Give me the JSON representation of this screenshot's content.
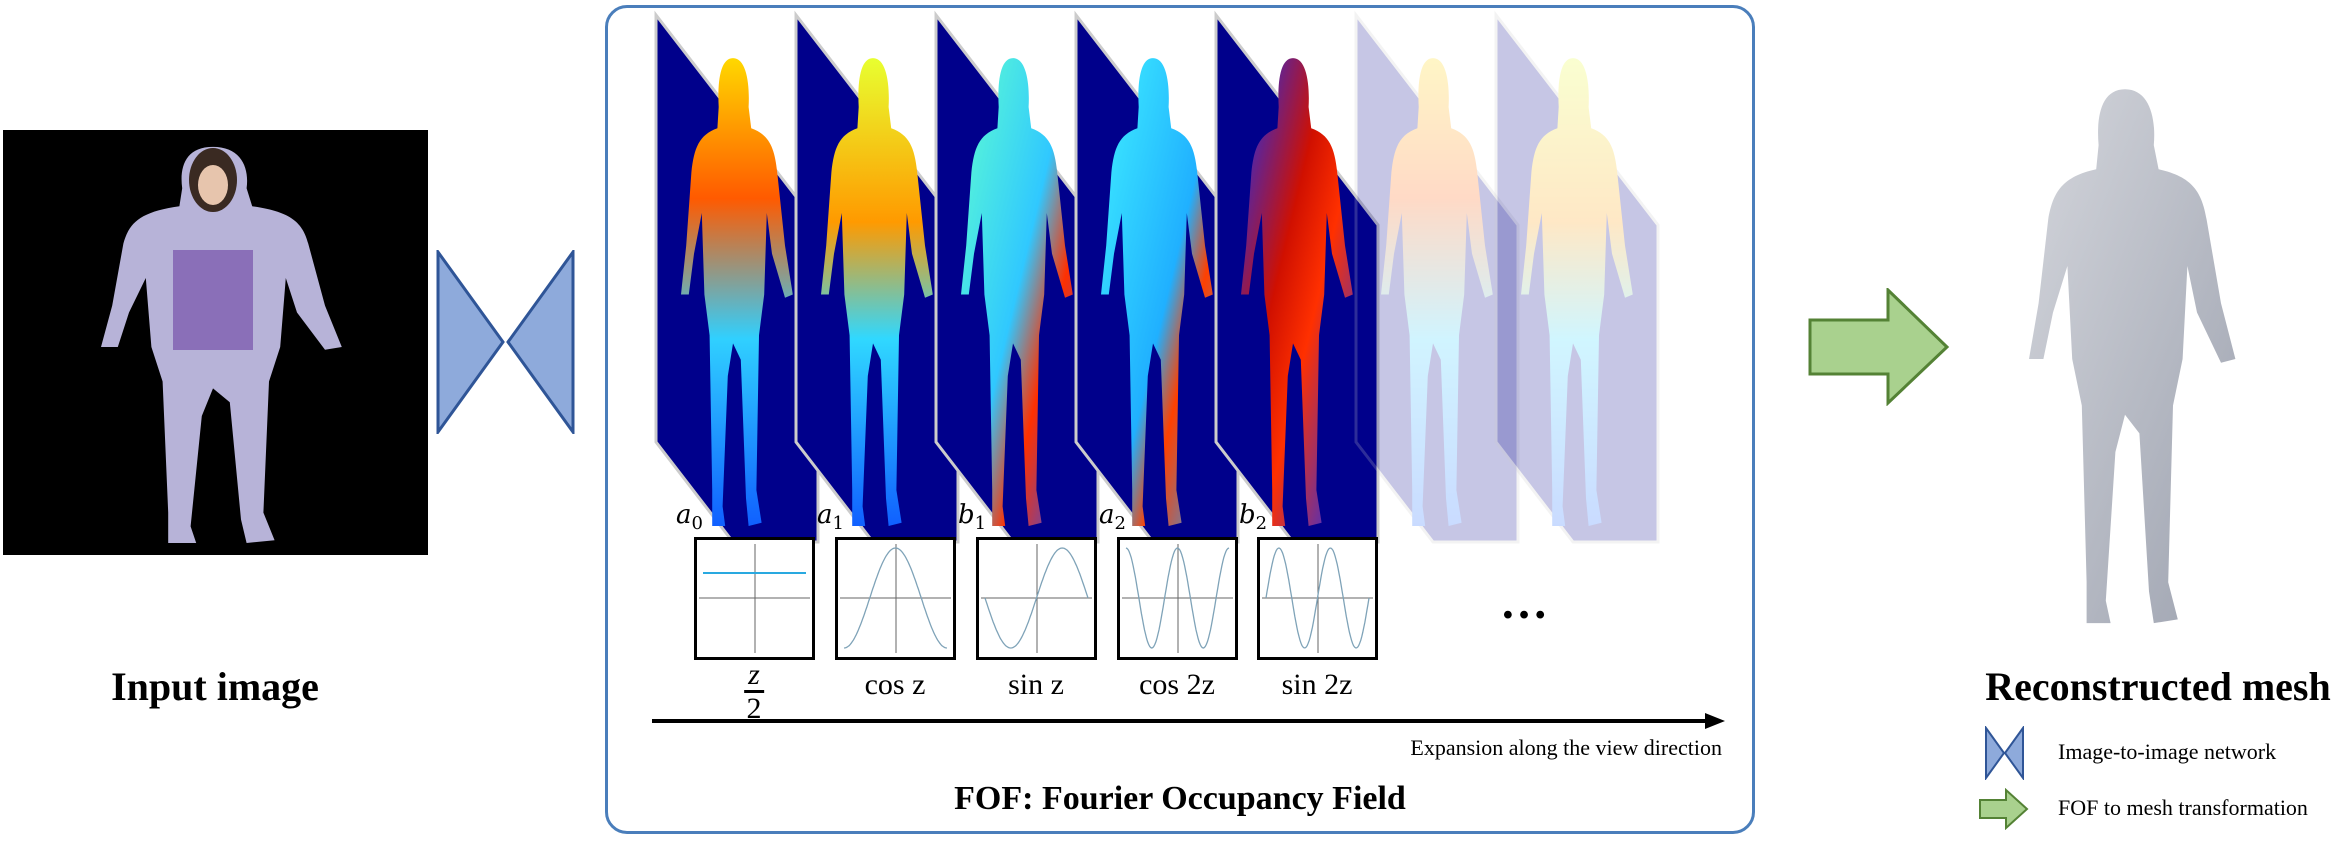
{
  "input": {
    "label": "Input image"
  },
  "fof": {
    "title": "FOF: Fourier Occupancy Field",
    "axis_label": "Expansion along the view direction",
    "ellipsis": "…",
    "coefficients": [
      {
        "symbol": "a",
        "index": "0",
        "basis": "z/2",
        "basis_num": "z",
        "basis_den": "2",
        "kind": "const"
      },
      {
        "symbol": "a",
        "index": "1",
        "basis": "cos z",
        "kind": "cos1"
      },
      {
        "symbol": "b",
        "index": "1",
        "basis": "sin z",
        "kind": "sin1"
      },
      {
        "symbol": "a",
        "index": "2",
        "basis": "cos 2z",
        "kind": "cos2"
      },
      {
        "symbol": "b",
        "index": "2",
        "basis": "sin 2z",
        "kind": "sin2"
      }
    ]
  },
  "output": {
    "label": "Reconstructed mesh"
  },
  "legend": [
    {
      "icon": "bowtie-network-icon",
      "label": "Image-to-image network"
    },
    {
      "icon": "green-arrow-icon",
      "label": "FOF to mesh transformation"
    }
  ],
  "colors": {
    "network": "#8eaadb",
    "network_border": "#2f5597",
    "arrow": "#a9d18e",
    "arrow_border": "#548235",
    "frame": "#4a7ebb",
    "heatmap_bg": "#00008b"
  }
}
